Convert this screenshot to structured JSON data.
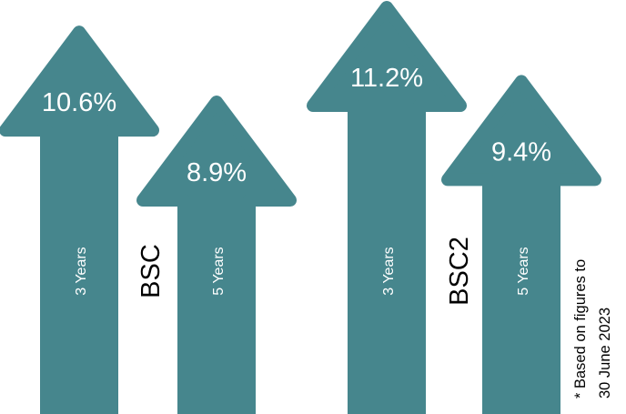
{
  "chart_data": {
    "type": "bar",
    "unit": "%",
    "groups": [
      {
        "name": "BSC",
        "bars": [
          {
            "period": "3 Years",
            "value": 10.6,
            "label": "10.6%"
          },
          {
            "period": "5 Years",
            "value": 8.9,
            "label": "8.9%"
          }
        ]
      },
      {
        "name": "BSC2",
        "bars": [
          {
            "period": "3 Years",
            "value": 11.2,
            "label": "11.2%"
          },
          {
            "period": "5 Years",
            "value": 9.4,
            "label": "9.4%"
          }
        ]
      }
    ],
    "footnote": [
      "* Based on figures to",
      "30 June 2023"
    ]
  },
  "colors": {
    "arrow": "#46868d",
    "label_text": "#ffffff",
    "group_text": "#000000"
  }
}
